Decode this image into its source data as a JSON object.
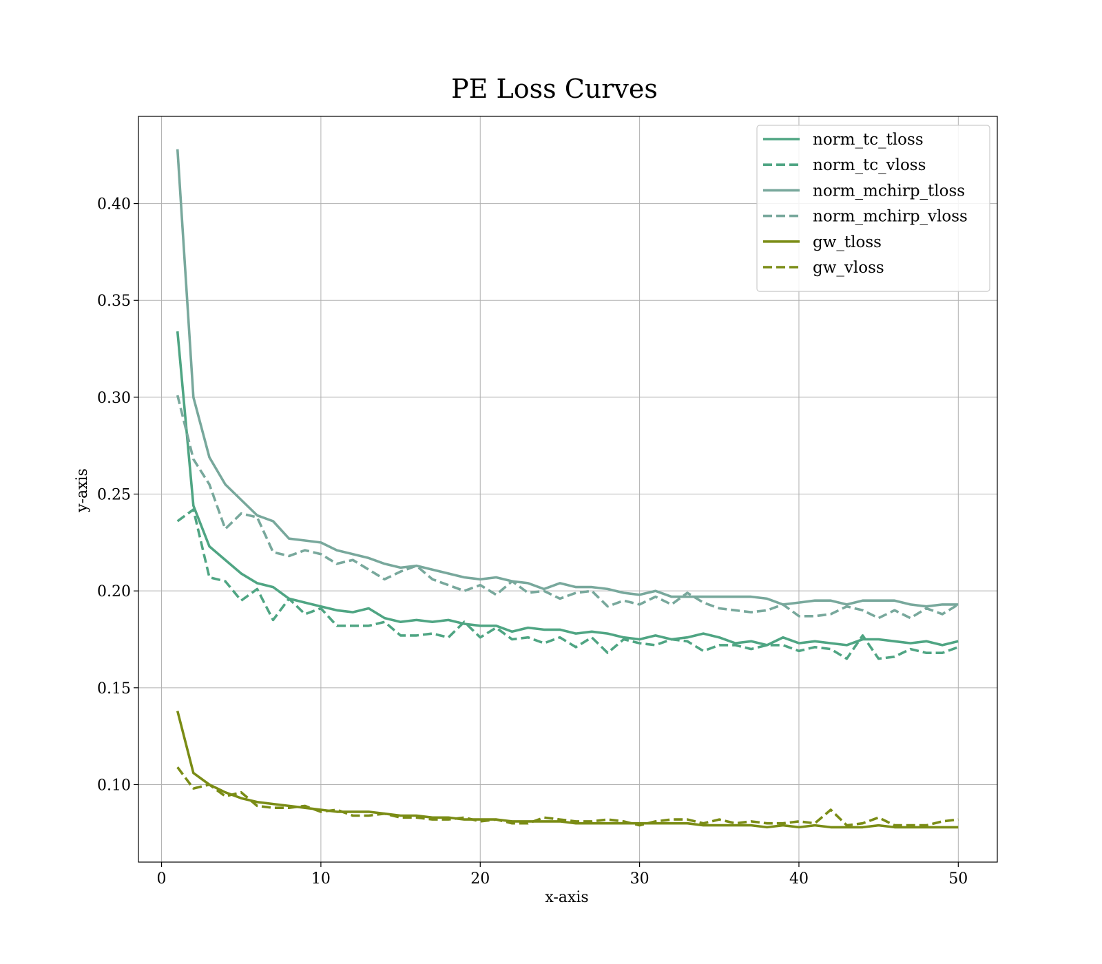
{
  "chart_data": {
    "type": "line",
    "title": "PE Loss Curves",
    "xlabel": "x-axis",
    "ylabel": "y-axis",
    "xlim": [
      -1.45,
      52.45
    ],
    "ylim": [
      0.06,
      0.445
    ],
    "xticks": [
      0,
      10,
      20,
      30,
      40,
      50
    ],
    "xtick_labels": [
      "0",
      "10",
      "20",
      "30",
      "40",
      "50"
    ],
    "yticks": [
      0.1,
      0.15,
      0.2,
      0.25,
      0.3,
      0.35,
      0.4
    ],
    "ytick_labels": [
      "0.10",
      "0.15",
      "0.20",
      "0.25",
      "0.30",
      "0.35",
      "0.40"
    ],
    "grid": true,
    "legend_position": "top-right",
    "x": [
      1,
      2,
      3,
      4,
      5,
      6,
      7,
      8,
      9,
      10,
      11,
      12,
      13,
      14,
      15,
      16,
      17,
      18,
      19,
      20,
      21,
      22,
      23,
      24,
      25,
      26,
      27,
      28,
      29,
      30,
      31,
      32,
      33,
      34,
      35,
      36,
      37,
      38,
      39,
      40,
      41,
      42,
      43,
      44,
      45,
      46,
      47,
      48,
      49,
      50
    ],
    "series": [
      {
        "name": "norm_tc_tloss",
        "color": "#4fa583",
        "dash": "solid",
        "values": [
          0.334,
          0.244,
          0.223,
          0.216,
          0.209,
          0.204,
          0.202,
          0.196,
          0.194,
          0.192,
          0.19,
          0.189,
          0.191,
          0.186,
          0.184,
          0.185,
          0.184,
          0.185,
          0.183,
          0.182,
          0.182,
          0.179,
          0.181,
          0.18,
          0.18,
          0.178,
          0.179,
          0.178,
          0.176,
          0.175,
          0.177,
          0.175,
          0.176,
          0.178,
          0.176,
          0.173,
          0.174,
          0.172,
          0.176,
          0.173,
          0.174,
          0.173,
          0.172,
          0.175,
          0.175,
          0.174,
          0.173,
          0.174,
          0.172,
          0.174
        ]
      },
      {
        "name": "norm_tc_vloss",
        "color": "#4fa583",
        "dash": "dashed",
        "values": [
          0.236,
          0.242,
          0.207,
          0.205,
          0.195,
          0.201,
          0.185,
          0.196,
          0.188,
          0.191,
          0.182,
          0.182,
          0.182,
          0.184,
          0.177,
          0.177,
          0.178,
          0.176,
          0.184,
          0.176,
          0.181,
          0.175,
          0.176,
          0.173,
          0.176,
          0.171,
          0.176,
          0.168,
          0.175,
          0.173,
          0.172,
          0.175,
          0.174,
          0.169,
          0.172,
          0.172,
          0.17,
          0.172,
          0.172,
          0.169,
          0.171,
          0.17,
          0.165,
          0.177,
          0.165,
          0.166,
          0.17,
          0.168,
          0.168,
          0.171
        ]
      },
      {
        "name": "norm_mchirp_tloss",
        "color": "#78a89c",
        "dash": "solid",
        "values": [
          0.428,
          0.3,
          0.269,
          0.255,
          0.247,
          0.239,
          0.236,
          0.227,
          0.226,
          0.225,
          0.221,
          0.219,
          0.217,
          0.214,
          0.212,
          0.213,
          0.211,
          0.209,
          0.207,
          0.206,
          0.207,
          0.205,
          0.204,
          0.201,
          0.204,
          0.202,
          0.202,
          0.201,
          0.199,
          0.198,
          0.2,
          0.197,
          0.197,
          0.197,
          0.197,
          0.197,
          0.197,
          0.196,
          0.193,
          0.194,
          0.195,
          0.195,
          0.193,
          0.195,
          0.195,
          0.195,
          0.193,
          0.192,
          0.193,
          0.193
        ]
      },
      {
        "name": "norm_mchirp_vloss",
        "color": "#78a89c",
        "dash": "dashed",
        "values": [
          0.301,
          0.268,
          0.255,
          0.232,
          0.24,
          0.238,
          0.22,
          0.218,
          0.221,
          0.219,
          0.214,
          0.216,
          0.211,
          0.206,
          0.21,
          0.213,
          0.206,
          0.203,
          0.2,
          0.203,
          0.198,
          0.205,
          0.199,
          0.2,
          0.196,
          0.199,
          0.2,
          0.192,
          0.195,
          0.193,
          0.197,
          0.193,
          0.199,
          0.194,
          0.191,
          0.19,
          0.189,
          0.19,
          0.193,
          0.187,
          0.187,
          0.188,
          0.192,
          0.19,
          0.186,
          0.19,
          0.186,
          0.191,
          0.188,
          0.193
        ]
      },
      {
        "name": "gw_tloss",
        "color": "#7a8c15",
        "dash": "solid",
        "values": [
          0.138,
          0.106,
          0.1,
          0.096,
          0.093,
          0.091,
          0.09,
          0.089,
          0.088,
          0.087,
          0.086,
          0.086,
          0.086,
          0.085,
          0.084,
          0.084,
          0.083,
          0.083,
          0.082,
          0.082,
          0.082,
          0.081,
          0.081,
          0.081,
          0.081,
          0.08,
          0.08,
          0.08,
          0.08,
          0.08,
          0.08,
          0.08,
          0.08,
          0.079,
          0.079,
          0.079,
          0.079,
          0.078,
          0.079,
          0.078,
          0.079,
          0.078,
          0.078,
          0.078,
          0.079,
          0.078,
          0.078,
          0.078,
          0.078,
          0.078
        ]
      },
      {
        "name": "gw_vloss",
        "color": "#7a8c15",
        "dash": "dashed",
        "values": [
          0.109,
          0.098,
          0.1,
          0.094,
          0.096,
          0.089,
          0.088,
          0.088,
          0.089,
          0.086,
          0.087,
          0.084,
          0.084,
          0.085,
          0.083,
          0.083,
          0.082,
          0.082,
          0.083,
          0.081,
          0.082,
          0.08,
          0.08,
          0.083,
          0.082,
          0.081,
          0.081,
          0.082,
          0.081,
          0.079,
          0.081,
          0.082,
          0.082,
          0.08,
          0.082,
          0.08,
          0.081,
          0.08,
          0.08,
          0.081,
          0.08,
          0.087,
          0.079,
          0.08,
          0.083,
          0.079,
          0.079,
          0.079,
          0.081,
          0.082
        ]
      }
    ]
  }
}
